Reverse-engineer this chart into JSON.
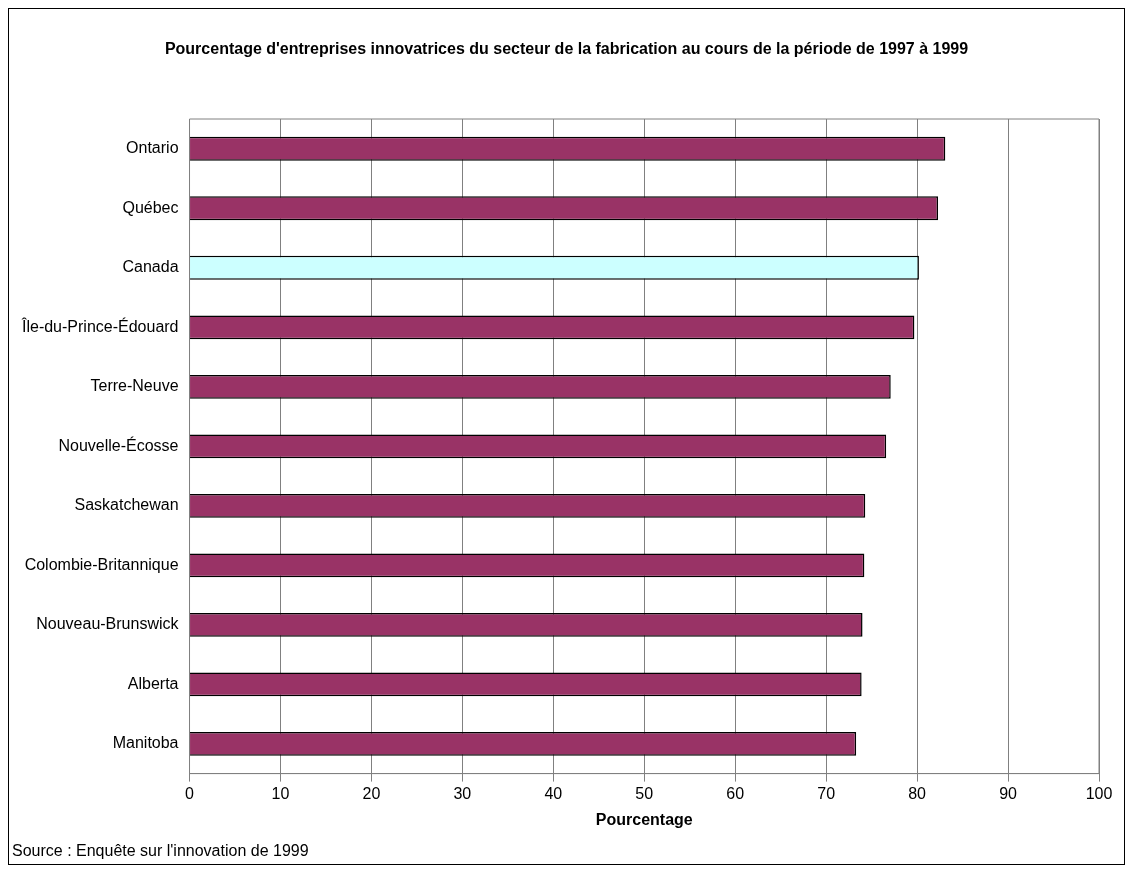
{
  "chart_data": {
    "type": "bar",
    "orientation": "horizontal",
    "title": "Pourcentage d'entreprises innovatrices du secteur de la fabrication au cours de la période de 1997 à 1999",
    "xlabel": "Pourcentage",
    "categories": [
      "Ontario",
      "Québec",
      "Canada",
      "Île-du-Prince-Édouard",
      "Terre-Neuve",
      "Nouvelle-Écosse",
      "Saskatchewan",
      "Colombie-Britannique",
      "Nouveau-Brunswick",
      "Alberta",
      "Manitoba"
    ],
    "values": [
      83.1,
      82.3,
      80.2,
      79.7,
      77.1,
      76.6,
      74.3,
      74.2,
      74.0,
      73.9,
      73.3
    ],
    "colors": [
      "#993366",
      "#993366",
      "#ccffff",
      "#993366",
      "#993366",
      "#993366",
      "#993366",
      "#993366",
      "#993366",
      "#993366",
      "#993366"
    ],
    "xlim": [
      0,
      100
    ],
    "xticks": [
      0,
      10,
      20,
      30,
      40,
      50,
      60,
      70,
      80,
      90,
      100
    ],
    "grid": "x",
    "legend": false,
    "annotations": [
      "Source :  Enquête sur l'innovation de 1999"
    ]
  }
}
